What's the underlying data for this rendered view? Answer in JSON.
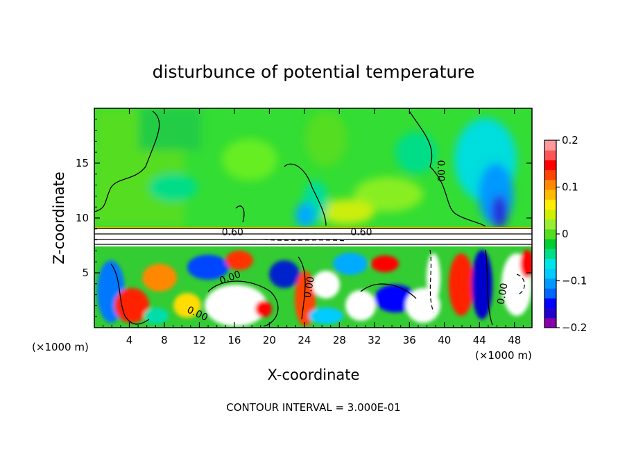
{
  "chart_data": {
    "type": "heatmap",
    "title": "disturbunce of potential temperature",
    "xlabel": "X-coordinate",
    "ylabel": "Z-coordinate",
    "x_unit_note_left": "(×1000 m)",
    "x_unit_note_right": "(×1000 m)",
    "xlim": [
      0,
      50
    ],
    "ylim": [
      0,
      20
    ],
    "x_ticks": [
      4,
      8,
      12,
      16,
      20,
      24,
      28,
      32,
      36,
      40,
      44,
      48
    ],
    "y_ticks": [
      5,
      10,
      15
    ],
    "colorbar": {
      "range": [
        -0.2,
        0.2
      ],
      "ticks": [
        {
          "value": 0.2,
          "label": "0.2"
        },
        {
          "value": 0.1,
          "label": "0.1"
        },
        {
          "value": 0.0,
          "label": "0"
        },
        {
          "value": -0.1,
          "label": "−0.1"
        },
        {
          "value": -0.2,
          "label": "−0.2"
        }
      ],
      "colors": [
        "#8800aa",
        "#2200cc",
        "#0000ff",
        "#0066ff",
        "#0099ff",
        "#00ccff",
        "#00e5e5",
        "#00dd88",
        "#00cc33",
        "#55dd22",
        "#99ee33",
        "#ccf000",
        "#ffee00",
        "#ffbb00",
        "#ff8800",
        "#ff4400",
        "#ff0000",
        "#ff5555",
        "#ff9999"
      ]
    },
    "contour_labels": [
      {
        "text": "0.60",
        "x": 15.8,
        "z": 8.75,
        "rotate": 0
      },
      {
        "text": "0.60",
        "x": 30.5,
        "z": 8.75,
        "rotate": 0
      },
      {
        "text": "0.00",
        "x": 15.5,
        "z": 4.6,
        "rotate": -20
      },
      {
        "text": "0.00",
        "x": 11.8,
        "z": 1.3,
        "rotate": 25
      },
      {
        "text": "0.00",
        "x": 39.6,
        "z": 14.3,
        "rotate": 90
      },
      {
        "text": "0.00",
        "x": 46.6,
        "z": 3.1,
        "rotate": -80
      },
      {
        "text": "0.00",
        "x": 24.5,
        "z": 3.7,
        "rotate": -80
      }
    ],
    "footer_note": "CONTOUR INTERVAL = 3.000E-01"
  }
}
